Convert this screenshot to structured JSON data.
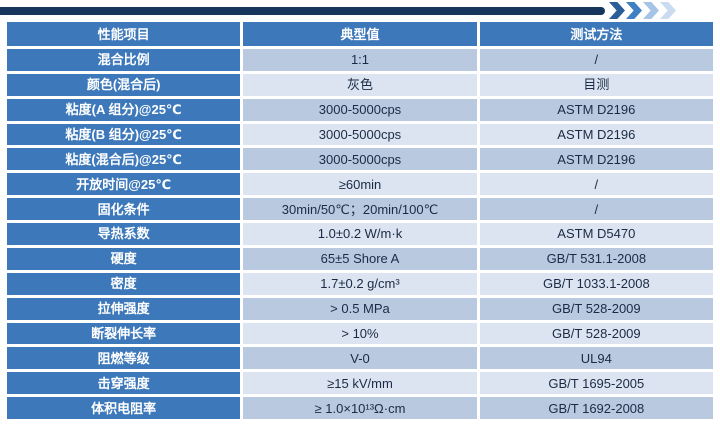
{
  "decor": {
    "bar_color": "#17365d",
    "chevron_colors": [
      "#2b5d99",
      "#3f80c4",
      "#a6c5e6",
      "#cadcf0"
    ]
  },
  "table": {
    "headers": [
      "性能项目",
      "典型值",
      "测试方法"
    ],
    "colors": {
      "header_bg": "#3d79ba",
      "header_text": "#ffffff",
      "row_bg_dark": "#b8c9e0",
      "row_bg_light": "#dbe4f0",
      "value_text": "#1b2b45"
    },
    "rows": [
      {
        "property": "混合比例",
        "value": "1:1",
        "method": "/"
      },
      {
        "property": "颜色(混合后)",
        "value": "灰色",
        "method": "目测"
      },
      {
        "property": "粘度(A 组分)@25℃",
        "value": "3000-5000cps",
        "method": "ASTM D2196"
      },
      {
        "property": "粘度(B 组分)@25℃",
        "value": "3000-5000cps",
        "method": "ASTM D2196"
      },
      {
        "property": "粘度(混合后)@25℃",
        "value": "3000-5000cps",
        "method": "ASTM D2196"
      },
      {
        "property": "开放时间@25℃",
        "value": "≥60min",
        "method": "/"
      },
      {
        "property": "固化条件",
        "value": "30min/50℃；20min/100℃",
        "method": "/"
      },
      {
        "property": "导热系数",
        "value": "1.0±0.2 W/m·k",
        "method": "ASTM D5470"
      },
      {
        "property": "硬度",
        "value": "65±5 Shore A",
        "method": "GB/T 531.1-2008"
      },
      {
        "property": "密度",
        "value": "1.7±0.2 g/cm³",
        "method": "GB/T 1033.1-2008"
      },
      {
        "property": "拉伸强度",
        "value": "> 0.5 MPa",
        "method": "GB/T 528-2009"
      },
      {
        "property": "断裂伸长率",
        "value": "> 10%",
        "method": "GB/T 528-2009"
      },
      {
        "property": "阻燃等级",
        "value": "V-0",
        "method": "UL94"
      },
      {
        "property": "击穿强度",
        "value": "≥15 kV/mm",
        "method": "GB/T 1695-2005"
      },
      {
        "property": "体积电阻率",
        "value": "≥ 1.0×10¹³Ω·cm",
        "method": "GB/T 1692-2008"
      }
    ]
  }
}
